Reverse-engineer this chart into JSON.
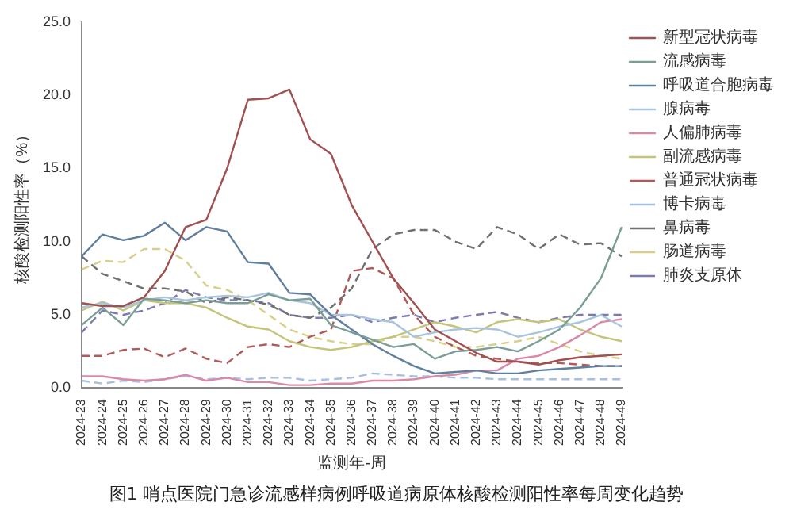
{
  "chart_data": {
    "type": "line",
    "xlabel": "监测年-周",
    "ylabel": "核酸检测阳性率（%）",
    "categories": [
      "2024-23",
      "2024-24",
      "2024-25",
      "2024-26",
      "2024-27",
      "2024-28",
      "2024-29",
      "2024-30",
      "2024-31",
      "2024-32",
      "2024-33",
      "2024-34",
      "2024-35",
      "2024-36",
      "2024-37",
      "2024-38",
      "2024-39",
      "2024-40",
      "2024-41",
      "2024-42",
      "2024-43",
      "2024-44",
      "2024-45",
      "2024-46",
      "2024-47",
      "2024-48",
      "2024-49"
    ],
    "series": [
      {
        "name": "新型冠状病毒",
        "color": "#a0504f",
        "line_style": "solid",
        "values": [
          5.8,
          5.6,
          5.6,
          6.2,
          8.0,
          11.0,
          11.5,
          15.0,
          19.7,
          19.8,
          20.4,
          17.0,
          16.0,
          12.5,
          10.0,
          7.5,
          5.8,
          4.0,
          3.2,
          2.4,
          1.8,
          1.8,
          1.6,
          1.9,
          2.1,
          2.2,
          2.3
        ]
      },
      {
        "name": "流感病毒",
        "color": "#7a9e95",
        "line_style": "solid",
        "values": [
          4.3,
          5.5,
          4.3,
          6.1,
          6.0,
          5.8,
          6.0,
          5.8,
          5.8,
          6.4,
          6.0,
          6.1,
          4.3,
          3.8,
          3.3,
          2.8,
          3.0,
          2.0,
          2.5,
          2.6,
          2.8,
          2.5,
          3.2,
          4.0,
          5.5,
          7.5,
          11.0
        ]
      },
      {
        "name": "呼吸道合胞病毒",
        "color": "#5f7f9f",
        "line_style": "solid",
        "values": [
          9.0,
          10.5,
          10.1,
          10.4,
          11.3,
          10.1,
          11.0,
          10.7,
          8.6,
          8.5,
          6.5,
          6.4,
          5.0,
          4.0,
          3.0,
          2.2,
          1.5,
          1.0,
          1.1,
          1.2,
          1.0,
          1.0,
          1.2,
          1.3,
          1.4,
          1.5,
          1.5
        ]
      },
      {
        "name": "腺病毒",
        "color": "#a9c4dc",
        "line_style": "solid",
        "values": [
          5.5,
          5.8,
          5.5,
          6.0,
          6.2,
          6.0,
          6.2,
          6.3,
          6.2,
          6.5,
          6.0,
          5.8,
          5.0,
          5.0,
          4.7,
          4.5,
          3.5,
          3.8,
          4.0,
          4.1,
          4.0,
          3.5,
          3.8,
          4.2,
          4.5,
          5.0,
          4.2
        ]
      },
      {
        "name": "人偏肺病毒",
        "color": "#d88aa8",
        "line_style": "solid",
        "values": [
          0.8,
          0.8,
          0.6,
          0.5,
          0.6,
          0.9,
          0.5,
          0.7,
          0.4,
          0.4,
          0.2,
          0.2,
          0.3,
          0.3,
          0.5,
          0.5,
          0.6,
          0.8,
          0.9,
          1.2,
          1.2,
          2.0,
          2.2,
          2.8,
          3.6,
          4.5,
          4.7
        ]
      },
      {
        "name": "副流感病毒",
        "color": "#c4c47a",
        "line_style": "solid",
        "values": [
          5.3,
          5.9,
          5.3,
          6.0,
          5.8,
          5.8,
          5.5,
          4.8,
          4.2,
          4.0,
          3.2,
          2.8,
          2.6,
          2.8,
          3.2,
          3.5,
          4.0,
          4.5,
          4.2,
          3.8,
          4.5,
          4.7,
          4.5,
          4.7,
          4.0,
          3.5,
          3.2
        ]
      },
      {
        "name": "普通冠状病毒",
        "color": "#b05a5a",
        "line_style": "dashed",
        "values": [
          2.2,
          2.2,
          2.6,
          2.7,
          2.1,
          2.7,
          2.0,
          1.7,
          2.8,
          3.0,
          2.8,
          3.5,
          4.0,
          8.0,
          8.2,
          7.5,
          5.0,
          3.5,
          2.8,
          2.2,
          2.0,
          1.8,
          1.7,
          1.7,
          1.6,
          1.5,
          1.5
        ]
      },
      {
        "name": "博卡病毒",
        "color": "#a8bfe0",
        "line_style": "dashed",
        "values": [
          0.5,
          0.3,
          0.5,
          0.4,
          0.6,
          0.8,
          0.6,
          0.7,
          0.6,
          0.7,
          0.7,
          0.5,
          0.6,
          0.7,
          1.0,
          0.9,
          0.8,
          0.8,
          0.7,
          0.7,
          0.6,
          0.6,
          0.6,
          0.6,
          0.6,
          0.6,
          0.6
        ]
      },
      {
        "name": "鼻病毒",
        "color": "#707070",
        "line_style": "dashed",
        "values": [
          9.0,
          7.8,
          7.3,
          6.8,
          6.8,
          6.6,
          5.8,
          6.2,
          6.0,
          5.7,
          5.0,
          4.8,
          5.5,
          6.8,
          9.5,
          10.5,
          10.8,
          10.8,
          10.0,
          9.5,
          11.0,
          10.5,
          9.5,
          10.5,
          9.8,
          9.9,
          9.0
        ]
      },
      {
        "name": "肠道病毒",
        "color": "#d8d08a",
        "line_style": "dashed",
        "values": [
          8.1,
          8.7,
          8.6,
          9.5,
          9.5,
          8.7,
          7.0,
          6.7,
          6.0,
          5.0,
          4.0,
          3.5,
          3.2,
          3.0,
          3.0,
          3.5,
          3.5,
          3.2,
          2.8,
          2.8,
          3.0,
          3.2,
          3.5,
          3.0,
          2.5,
          2.2,
          2.0
        ]
      },
      {
        "name": "肺炎支原体",
        "color": "#7a7ab0",
        "line_style": "dashed",
        "values": [
          3.8,
          5.3,
          5.0,
          5.3,
          5.8,
          6.7,
          6.2,
          6.0,
          6.0,
          5.8,
          5.0,
          4.8,
          4.8,
          5.0,
          4.5,
          4.8,
          5.0,
          4.5,
          4.8,
          5.0,
          5.2,
          4.8,
          4.5,
          4.8,
          5.0,
          5.0,
          5.0
        ]
      }
    ],
    "ylim": [
      0,
      25
    ],
    "yticks": [
      {
        "value": 0,
        "label": "0.0"
      },
      {
        "value": 5,
        "label": "5.0"
      },
      {
        "value": 10,
        "label": "10.0"
      },
      {
        "value": 15,
        "label": "15.0"
      },
      {
        "value": 20,
        "label": "20.0"
      },
      {
        "value": 25,
        "label": "25.0"
      }
    ],
    "grid": false,
    "legend": "right",
    "marker": "none",
    "annotations": [
      "图1 哨点医院门急诊流感样病例呼吸道病原体核酸检测阳性率每周变化趋势"
    ]
  }
}
